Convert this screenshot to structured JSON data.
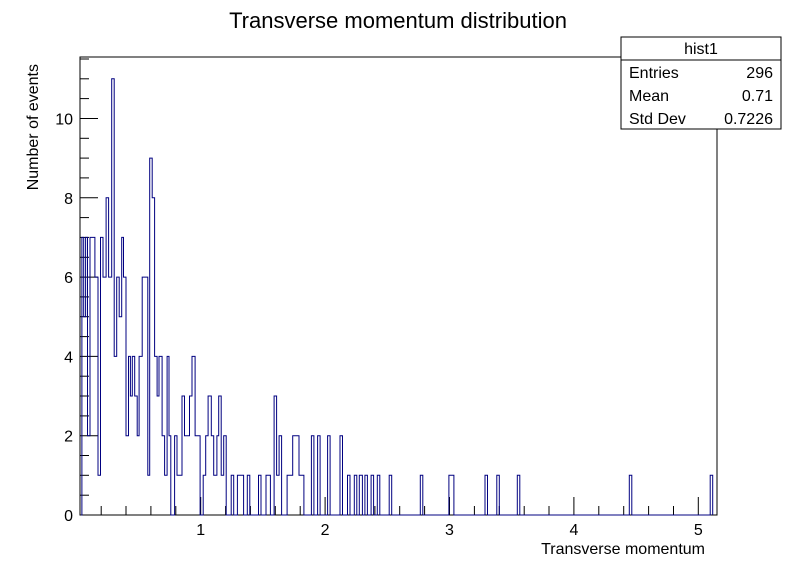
{
  "chart_data": {
    "type": "histogram",
    "title": "Transverse momentum distribution",
    "xlabel": "Transverse momentum",
    "ylabel": "Number of events",
    "xlim": [
      0.03,
      5.15
    ],
    "ylim": [
      0,
      11.55
    ],
    "bin_width": 0.0205,
    "x_ticks": [
      1,
      2,
      3,
      4,
      5
    ],
    "y_ticks": [
      0,
      2,
      4,
      6,
      8,
      10
    ],
    "line_color": "#000080",
    "stats": {
      "name": "hist1",
      "rows": [
        {
          "label": "Entries",
          "value": "296"
        },
        {
          "label": "Mean",
          "value": "0.71"
        },
        {
          "label": "Std Dev",
          "value": "0.7226"
        }
      ]
    },
    "bins": [
      [
        0.04,
        0
      ],
      [
        0.045,
        7
      ],
      [
        0.06,
        5
      ],
      [
        0.075,
        7
      ],
      [
        0.09,
        2
      ],
      [
        0.11,
        7
      ],
      [
        0.13,
        7
      ],
      [
        0.15,
        6
      ],
      [
        0.175,
        1
      ],
      [
        0.195,
        7
      ],
      [
        0.215,
        6
      ],
      [
        0.24,
        8
      ],
      [
        0.26,
        6
      ],
      [
        0.285,
        11
      ],
      [
        0.305,
        4
      ],
      [
        0.325,
        6
      ],
      [
        0.345,
        5
      ],
      [
        0.365,
        7
      ],
      [
        0.38,
        6
      ],
      [
        0.4,
        2
      ],
      [
        0.42,
        4
      ],
      [
        0.435,
        3
      ],
      [
        0.45,
        4
      ],
      [
        0.47,
        3
      ],
      [
        0.49,
        2
      ],
      [
        0.505,
        4
      ],
      [
        0.53,
        6
      ],
      [
        0.555,
        6
      ],
      [
        0.575,
        1
      ],
      [
        0.59,
        9
      ],
      [
        0.61,
        8
      ],
      [
        0.63,
        4
      ],
      [
        0.65,
        3
      ],
      [
        0.665,
        4
      ],
      [
        0.69,
        2
      ],
      [
        0.71,
        1
      ],
      [
        0.73,
        4
      ],
      [
        0.745,
        2
      ],
      [
        0.76,
        0
      ],
      [
        0.79,
        2
      ],
      [
        0.81,
        1
      ],
      [
        0.83,
        1
      ],
      [
        0.85,
        3
      ],
      [
        0.87,
        2
      ],
      [
        0.89,
        2
      ],
      [
        0.91,
        3
      ],
      [
        0.93,
        4
      ],
      [
        0.955,
        2
      ],
      [
        0.975,
        2
      ],
      [
        0.995,
        0
      ],
      [
        1.02,
        1
      ],
      [
        1.04,
        2
      ],
      [
        1.06,
        3
      ],
      [
        1.085,
        2
      ],
      [
        1.105,
        1
      ],
      [
        1.13,
        2
      ],
      [
        1.145,
        3
      ],
      [
        1.165,
        1
      ],
      [
        1.185,
        2
      ],
      [
        1.205,
        0
      ],
      [
        1.245,
        1
      ],
      [
        1.265,
        0
      ],
      [
        1.295,
        1
      ],
      [
        1.345,
        0
      ],
      [
        1.375,
        1
      ],
      [
        1.395,
        0
      ],
      [
        1.465,
        1
      ],
      [
        1.485,
        0
      ],
      [
        1.525,
        1
      ],
      [
        1.56,
        0
      ],
      [
        1.59,
        3
      ],
      [
        1.61,
        1
      ],
      [
        1.63,
        2
      ],
      [
        1.65,
        0
      ],
      [
        1.695,
        1
      ],
      [
        1.71,
        1
      ],
      [
        1.74,
        2
      ],
      [
        1.76,
        2
      ],
      [
        1.79,
        1
      ],
      [
        1.81,
        1
      ],
      [
        1.83,
        0
      ],
      [
        1.89,
        2
      ],
      [
        1.91,
        0
      ],
      [
        1.94,
        2
      ],
      [
        1.96,
        0
      ],
      [
        2.02,
        2
      ],
      [
        2.04,
        0
      ],
      [
        2.12,
        2
      ],
      [
        2.14,
        0
      ],
      [
        2.18,
        1
      ],
      [
        2.2,
        0
      ],
      [
        2.235,
        1
      ],
      [
        2.255,
        0
      ],
      [
        2.275,
        1
      ],
      [
        2.3,
        0
      ],
      [
        2.32,
        1
      ],
      [
        2.34,
        0
      ],
      [
        2.37,
        1
      ],
      [
        2.39,
        0
      ],
      [
        2.42,
        1
      ],
      [
        2.44,
        0
      ],
      [
        2.515,
        1
      ],
      [
        2.535,
        0
      ],
      [
        2.765,
        1
      ],
      [
        2.785,
        0
      ],
      [
        2.995,
        1
      ],
      [
        3.015,
        1
      ],
      [
        3.035,
        0
      ],
      [
        3.285,
        1
      ],
      [
        3.305,
        0
      ],
      [
        3.38,
        1
      ],
      [
        3.4,
        0
      ],
      [
        3.545,
        1
      ],
      [
        3.565,
        0
      ],
      [
        4.445,
        1
      ],
      [
        4.465,
        0
      ],
      [
        5.095,
        1
      ]
    ]
  }
}
